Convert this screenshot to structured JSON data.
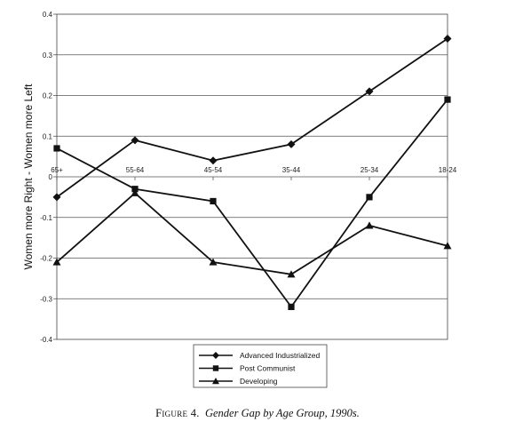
{
  "chart_data": {
    "type": "line",
    "categories": [
      "65+",
      "55-64",
      "45-54",
      "35-44",
      "25-34",
      "18-24"
    ],
    "series": [
      {
        "name": "Advanced Industrialized",
        "marker": "diamond",
        "values": [
          -0.05,
          0.09,
          0.04,
          0.08,
          0.21,
          0.34
        ]
      },
      {
        "name": "Post Communist",
        "marker": "square",
        "values": [
          0.07,
          -0.03,
          -0.06,
          -0.32,
          -0.05,
          0.19
        ]
      },
      {
        "name": "Developing",
        "marker": "triangle",
        "values": [
          -0.21,
          -0.04,
          -0.21,
          -0.24,
          -0.12,
          -0.17
        ]
      }
    ],
    "ylabel": "Women more Right - Women more Left",
    "xlabel": "",
    "ylim": [
      -0.4,
      0.4
    ],
    "yticks": [
      0.4,
      0.3,
      0.2,
      0.1,
      0,
      -0.1,
      -0.2,
      -0.3,
      -0.4
    ],
    "ytick_labels": [
      "0.4",
      "0.3",
      "0.2",
      "0.1",
      "0",
      "-0.1",
      "-0.2",
      "-0.3",
      "-0.4"
    ],
    "grid": true,
    "legend": "bottom-center",
    "line_color": "#111111"
  },
  "caption": {
    "figure_label": "Figure 4.",
    "title": "Gender Gap by Age Group, 1990s."
  }
}
